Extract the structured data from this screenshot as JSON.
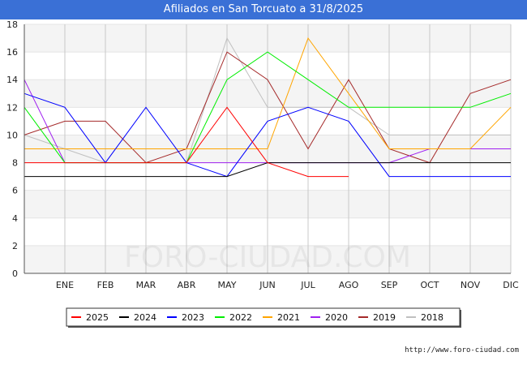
{
  "header": {
    "title": "Afiliados en San Torcuato a 31/8/2025"
  },
  "footer": {
    "url": "http://www.foro-ciudad.com"
  },
  "watermark": "FORO-CIUDAD.COM",
  "chart_data": {
    "type": "line",
    "title": "Afiliados en San Torcuato a 31/8/2025",
    "xlabel": "",
    "ylabel": "",
    "categories": [
      "",
      "ENE",
      "FEB",
      "MAR",
      "ABR",
      "MAY",
      "JUN",
      "JUL",
      "AGO",
      "SEP",
      "OCT",
      "NOV",
      "DIC"
    ],
    "ylim": [
      0,
      18
    ],
    "yticks": [
      0,
      2,
      4,
      6,
      8,
      10,
      12,
      14,
      16,
      18
    ],
    "grid": true,
    "legend_position": "bottom",
    "series": [
      {
        "name": "2025",
        "color": "#ff0000",
        "values": [
          8,
          8,
          8,
          8,
          8,
          12,
          8,
          7,
          7,
          null,
          null,
          null,
          null
        ]
      },
      {
        "name": "2024",
        "color": "#000000",
        "values": [
          7,
          7,
          7,
          7,
          7,
          7,
          8,
          8,
          8,
          8,
          8,
          8,
          8
        ]
      },
      {
        "name": "2023",
        "color": "#0000ff",
        "values": [
          13,
          12,
          8,
          12,
          8,
          7,
          11,
          12,
          11,
          7,
          7,
          7,
          7
        ]
      },
      {
        "name": "2022",
        "color": "#00ee00",
        "values": [
          12,
          8,
          8,
          8,
          8,
          14,
          16,
          14,
          12,
          12,
          12,
          12,
          13
        ]
      },
      {
        "name": "2021",
        "color": "#ffa500",
        "values": [
          9,
          9,
          9,
          9,
          9,
          9,
          9,
          17,
          13,
          9,
          9,
          9,
          12
        ]
      },
      {
        "name": "2020",
        "color": "#a020f0",
        "values": [
          14,
          8,
          8,
          8,
          8,
          8,
          8,
          8,
          8,
          8,
          9,
          9,
          9
        ]
      },
      {
        "name": "2019",
        "color": "#a52a2a",
        "values": [
          10,
          11,
          11,
          8,
          9,
          16,
          14,
          9,
          14,
          9,
          8,
          13,
          14
        ]
      },
      {
        "name": "2018",
        "color": "#c0c0c0",
        "values": [
          10,
          9,
          8,
          8,
          8,
          17,
          12,
          12,
          12,
          10,
          10,
          10,
          10
        ]
      }
    ]
  }
}
